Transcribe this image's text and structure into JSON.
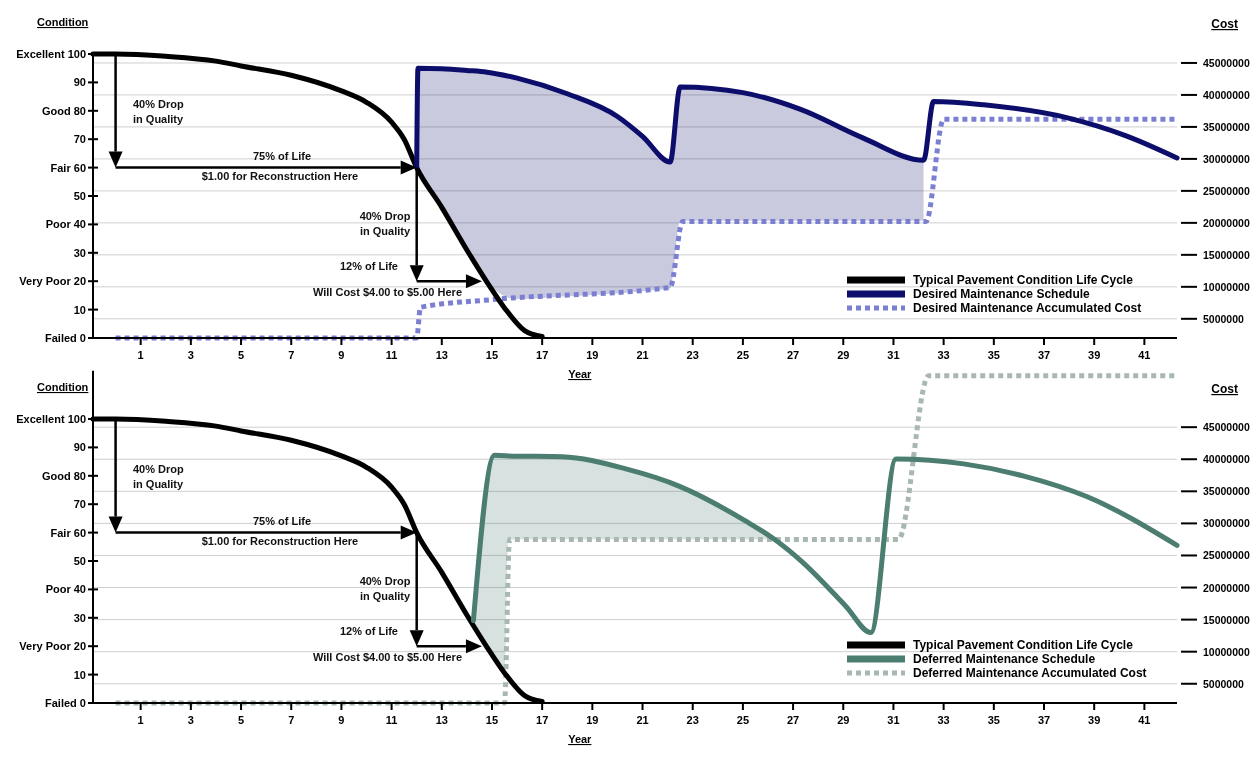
{
  "chart_data": [
    {
      "type": "line",
      "xlabel": "Year",
      "ylabel": "Condition",
      "y2label": "Cost",
      "xlim": [
        -0.9,
        42.3
      ],
      "xticks": [
        1,
        3,
        5,
        7,
        9,
        11,
        13,
        15,
        17,
        19,
        21,
        23,
        25,
        27,
        29,
        31,
        33,
        35,
        37,
        39,
        41
      ],
      "ylim": [
        0,
        100
      ],
      "yticks": [
        {
          "value": 0,
          "label": "Failed 0"
        },
        10,
        {
          "value": 20,
          "label": "Very Poor 20"
        },
        30,
        {
          "value": 40,
          "label": "Poor 40"
        },
        50,
        {
          "value": 60,
          "label": "Fair 60"
        },
        70,
        {
          "value": 80,
          "label": "Good 80"
        },
        90,
        {
          "value": 100,
          "label": "Excellent 100"
        }
      ],
      "y2lim": [
        2000000,
        46400000
      ],
      "y2ticks": [
        5000000,
        10000000,
        15000000,
        20000000,
        25000000,
        30000000,
        35000000,
        40000000,
        45000000
      ],
      "grid": "y2",
      "legend": "bottom right",
      "series": [
        {
          "name": "Typical Pavement Condition Life Cycle",
          "color": "#000000",
          "line_style": "solid",
          "x": [
            -0.9,
            0,
            2,
            4,
            5,
            7,
            9,
            10,
            11,
            11.5,
            12,
            13,
            14,
            14.8,
            15.5,
            16.3,
            17
          ],
          "values": [
            100,
            100,
            99.2,
            97.5,
            95.8,
            92.5,
            87,
            83,
            76,
            70,
            60,
            46,
            31,
            19.7,
            10.6,
            2.6,
            0.5
          ]
        },
        {
          "name": "Desired Maintenance Schedule",
          "color": "#0d0d6b",
          "line_style": "solid",
          "x": [
            12,
            12.05,
            13,
            14,
            14.8,
            16,
            18,
            20,
            21,
            22.1,
            22.5,
            25,
            27.3,
            29.8,
            32.2,
            32.6,
            34.6,
            37.9,
            40.3,
            42.3
          ],
          "values": [
            60,
            95,
            94.8,
            94.2,
            93.6,
            91.5,
            86,
            78,
            71,
            62,
            88.4,
            86.4,
            80.5,
            70.4,
            62.6,
            83.3,
            82.1,
            77.6,
            71.1,
            63.4
          ],
          "lower": [
            60,
            59,
            46,
            31,
            19.7,
            13.7,
            14.7,
            15.7,
            16.5,
            17.4,
            41.3,
            41.3,
            41.3,
            41.3,
            41.3,
            null,
            null,
            null,
            null,
            null
          ],
          "upper": [
            60,
            95,
            94.8,
            94.2,
            93.6,
            91.5,
            86,
            78,
            71,
            62,
            88.4,
            86.4,
            80.5,
            70.4,
            62.6,
            null,
            null,
            null,
            null,
            null
          ]
        },
        {
          "name": "Desired Maintenance Accumulated Cost",
          "color": "#7b7fd1",
          "line_style": "dotted",
          "axis": "y2",
          "x": [
            0,
            12,
            12.15,
            15,
            22.1,
            22.6,
            32.3,
            33,
            42.3
          ],
          "values": [
            2000000,
            2000000,
            6800000,
            8000000,
            9900000,
            20200000,
            20200000,
            36200000,
            36200000
          ]
        }
      ],
      "annotations": [
        "40% Drop\nin Quality",
        "75% of Life",
        "$1.00 for Reconstruction Here",
        "40% Drop\nin Quality",
        "12% of Life",
        "Will Cost $4.00 to $5.00 Here"
      ]
    },
    {
      "type": "line",
      "xlabel": "Year",
      "ylabel": "Condition",
      "y2label": "Cost",
      "xlim": [
        -0.9,
        42.3
      ],
      "xticks": [
        1,
        3,
        5,
        7,
        9,
        11,
        13,
        15,
        17,
        19,
        21,
        23,
        25,
        27,
        29,
        31,
        33,
        35,
        37,
        39,
        41
      ],
      "ylim": [
        0,
        117
      ],
      "yticks": [
        {
          "value": 0,
          "label": "Failed 0"
        },
        10,
        {
          "value": 20,
          "label": "Very Poor 20"
        },
        30,
        {
          "value": 40,
          "label": "Poor 40"
        },
        50,
        {
          "value": 60,
          "label": "Fair 60"
        },
        70,
        {
          "value": 80,
          "label": "Good 80"
        },
        90,
        {
          "value": 100,
          "label": "Excellent 100"
        }
      ],
      "y2lim": [
        2000000,
        53800000
      ],
      "y2ticks": [
        5000000,
        10000000,
        15000000,
        20000000,
        25000000,
        30000000,
        35000000,
        40000000,
        45000000
      ],
      "grid": "y2",
      "legend": "bottom right",
      "series": [
        {
          "name": "Typical Pavement Condition Life Cycle",
          "color": "#000000",
          "line_style": "solid",
          "x": [
            -0.9,
            0,
            2,
            4,
            5,
            7,
            9,
            10,
            11,
            11.5,
            12,
            13,
            14,
            14.8,
            15.5,
            16.3,
            17
          ],
          "values": [
            100,
            100,
            99.2,
            97.5,
            95.8,
            92.5,
            87,
            83,
            76,
            70,
            60,
            46,
            31,
            19.7,
            10.6,
            2.6,
            0.5
          ]
        },
        {
          "name": "Deferred Maintenance Schedule",
          "color": "#4b7d70",
          "line_style": "solid",
          "x": [
            14.26,
            15.1,
            15.5,
            15.65,
            17.8,
            20.3,
            22.5,
            25.1,
            26.2,
            27.35,
            29.1,
            30.1,
            31.1,
            33.8,
            36.2,
            38.7,
            42.3
          ],
          "values": [
            29,
            87.2,
            87.1,
            87,
            86.7,
            82.5,
            76.2,
            64.1,
            58,
            49.8,
            34.1,
            24.8,
            85.9,
            84.2,
            79.9,
            72.7,
            55.5
          ],
          "lower": [
            29,
            16,
            10.6,
            57.7,
            57.7,
            57.7,
            57.7,
            57.7,
            57.7,
            null,
            null,
            null,
            null,
            null,
            null,
            null,
            null
          ],
          "upper": [
            29,
            87.2,
            87.1,
            87,
            86.7,
            82.5,
            76.2,
            64.1,
            58,
            null,
            null,
            null,
            null,
            null,
            null,
            null,
            null
          ]
        },
        {
          "name": "Deferred Maintenance Accumulated Cost",
          "color": "#a8b8b0",
          "line_style": "dotted",
          "axis": "y2",
          "x": [
            0,
            15.5,
            15.7,
            31.2,
            32.4,
            42.3
          ],
          "values": [
            2000000,
            2000000,
            27500000,
            27500000,
            53000000,
            53000000
          ]
        }
      ],
      "annotations": [
        "40% Drop\nin Quality",
        "75% of Life",
        "$1.00 for Reconstruction Here",
        "40% Drop\nin Quality",
        "12% of Life",
        "Will Cost $4.00 to $5.00 Here"
      ]
    }
  ]
}
